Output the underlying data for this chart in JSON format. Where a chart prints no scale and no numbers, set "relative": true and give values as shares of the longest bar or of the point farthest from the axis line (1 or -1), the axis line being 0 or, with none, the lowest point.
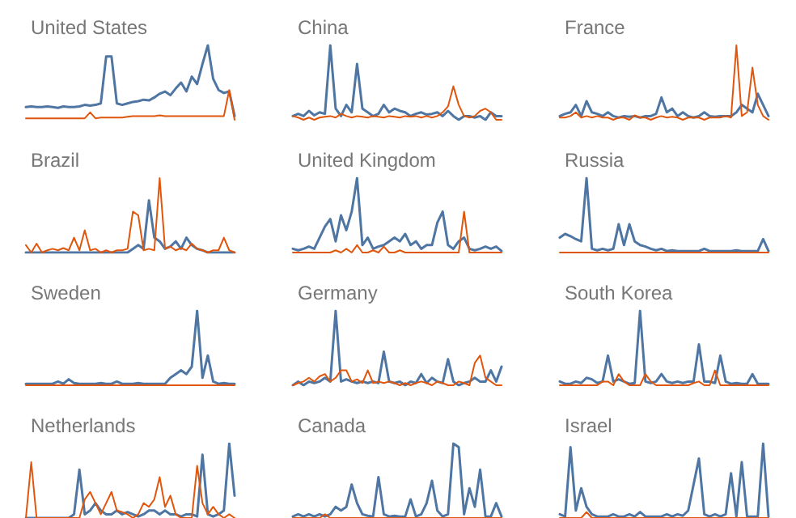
{
  "chart_data": [
    {
      "type": "line",
      "title": "United States",
      "relative": true,
      "categories": [
        null,
        null,
        null,
        null,
        null,
        null,
        null,
        null,
        null,
        null,
        null,
        null,
        null,
        null,
        null,
        null,
        null,
        null,
        null,
        null,
        null,
        null,
        null,
        null,
        null,
        null,
        null,
        null,
        null,
        null,
        null,
        null,
        null,
        null,
        null,
        null,
        null,
        null,
        null,
        null
      ],
      "series": [
        {
          "color": "#4f76a3",
          "values": [
            0.17,
            0.18,
            0.17,
            0.17,
            0.18,
            0.17,
            0.16,
            0.18,
            0.17,
            0.17,
            0.18,
            0.2,
            0.19,
            0.2,
            0.22,
            0.85,
            0.85,
            0.22,
            0.2,
            0.22,
            0.24,
            0.25,
            0.27,
            0.26,
            0.3,
            0.35,
            0.38,
            0.33,
            0.42,
            0.5,
            0.38,
            0.58,
            0.48,
            0.75,
            1,
            0.55,
            0.4,
            0.36,
            0.38,
            0.05
          ]
        },
        {
          "color": "#e0560c",
          "values": [
            0.02,
            0.02,
            0.02,
            0.02,
            0.02,
            0.02,
            0.02,
            0.02,
            0.02,
            0.02,
            0.02,
            0.02,
            0.1,
            0.02,
            0.03,
            0.03,
            0.03,
            0.03,
            0.03,
            0.04,
            0.05,
            0.05,
            0.05,
            0.05,
            0.05,
            0.06,
            0.05,
            0.05,
            0.05,
            0.05,
            0.05,
            0.05,
            0.05,
            0.05,
            0.05,
            0.05,
            0.05,
            0.05,
            0.4,
            0
          ]
        }
      ]
    },
    {
      "type": "line",
      "title": "China",
      "relative": true,
      "categories": [
        null,
        null,
        null,
        null,
        null,
        null,
        null,
        null,
        null,
        null,
        null,
        null,
        null,
        null,
        null,
        null,
        null,
        null,
        null,
        null,
        null,
        null,
        null,
        null,
        null,
        null,
        null,
        null,
        null,
        null,
        null,
        null,
        null,
        null,
        null,
        null,
        null,
        null,
        null,
        null
      ],
      "series": [
        {
          "color": "#4f76a3",
          "values": [
            0.05,
            0.08,
            0.05,
            0.12,
            0.06,
            0.1,
            0.08,
            1,
            0.15,
            0.05,
            0.2,
            0.1,
            0.75,
            0.15,
            0.1,
            0.05,
            0.08,
            0.2,
            0.1,
            0.15,
            0.12,
            0.1,
            0.05,
            0.08,
            0.1,
            0.07,
            0.08,
            0.1,
            0.05,
            0.12,
            0.05,
            0,
            0.05,
            0.05,
            0.03,
            0.05,
            0,
            0.1,
            0.05,
            0.05
          ]
        },
        {
          "color": "#e0560c",
          "values": [
            0.05,
            0.03,
            0,
            0.03,
            0,
            0.03,
            0.04,
            0.05,
            0.03,
            0.08,
            0.05,
            0.03,
            0.05,
            0.04,
            0.03,
            0.05,
            0.04,
            0.03,
            0.05,
            0.04,
            0.03,
            0.05,
            0.04,
            0.05,
            0.03,
            0.05,
            0.03,
            0.05,
            0.1,
            0.18,
            0.45,
            0.2,
            0.05,
            0.03,
            0.05,
            0.12,
            0.15,
            0.1,
            0,
            0
          ]
        }
      ]
    },
    {
      "type": "line",
      "title": "France",
      "relative": true,
      "categories": [
        null,
        null,
        null,
        null,
        null,
        null,
        null,
        null,
        null,
        null,
        null,
        null,
        null,
        null,
        null,
        null,
        null,
        null,
        null,
        null,
        null,
        null,
        null,
        null,
        null,
        null,
        null,
        null,
        null,
        null,
        null,
        null,
        null,
        null,
        null,
        null,
        null,
        null,
        null,
        null
      ],
      "series": [
        {
          "color": "#4f76a3",
          "values": [
            0.05,
            0.08,
            0.1,
            0.2,
            0.05,
            0.25,
            0.1,
            0.08,
            0.05,
            0.1,
            0.05,
            0.03,
            0.05,
            0.04,
            0.05,
            0.03,
            0.05,
            0.05,
            0.08,
            0.3,
            0.1,
            0.15,
            0.05,
            0.1,
            0.05,
            0.03,
            0.05,
            0.1,
            0.05,
            0.04,
            0.05,
            0.05,
            0.05,
            0.1,
            0.2,
            0.15,
            0.1,
            0.35,
            0.2,
            0.05
          ]
        },
        {
          "color": "#e0560c",
          "values": [
            0.03,
            0.03,
            0.05,
            0.1,
            0.03,
            0.05,
            0.03,
            0.05,
            0.03,
            0.03,
            0,
            0.03,
            0.03,
            0,
            0.06,
            0.03,
            0.03,
            0,
            0.03,
            0.05,
            0.03,
            0.04,
            0.03,
            0,
            0.03,
            0.03,
            0.03,
            0,
            0.03,
            0.03,
            0.03,
            0.05,
            0.03,
            1,
            0.05,
            0.1,
            0.7,
            0.2,
            0.05,
            0
          ]
        }
      ]
    },
    {
      "type": "line",
      "title": "Brazil",
      "relative": true,
      "categories": [
        null,
        null,
        null,
        null,
        null,
        null,
        null,
        null,
        null,
        null,
        null,
        null,
        null,
        null,
        null,
        null,
        null,
        null,
        null,
        null,
        null,
        null,
        null,
        null,
        null,
        null,
        null,
        null,
        null,
        null,
        null,
        null,
        null,
        null,
        null,
        null,
        null,
        null,
        null,
        null
      ],
      "series": [
        {
          "color": "#4f76a3",
          "values": [
            0,
            0,
            0,
            0,
            0,
            0,
            0,
            0,
            0,
            0,
            0,
            0,
            0,
            0,
            0,
            0,
            0,
            0,
            0,
            0,
            0.05,
            0.1,
            0.05,
            0.7,
            0.2,
            0.15,
            0.05,
            0.08,
            0.15,
            0.05,
            0.2,
            0.1,
            0.05,
            0.03,
            0,
            0,
            0,
            0,
            0,
            0
          ]
        },
        {
          "color": "#e0560c",
          "values": [
            0.1,
            0,
            0.12,
            0,
            0.03,
            0.05,
            0.03,
            0.06,
            0.03,
            0.2,
            0.03,
            0.3,
            0.03,
            0.05,
            0,
            0.03,
            0,
            0.03,
            0.03,
            0.05,
            0.55,
            0.5,
            0.03,
            0.05,
            0.03,
            1,
            0.05,
            0.08,
            0.03,
            0.06,
            0.03,
            0.12,
            0.05,
            0.03,
            0,
            0.03,
            0.03,
            0.2,
            0.03,
            0
          ]
        }
      ]
    },
    {
      "type": "line",
      "title": "United Kingdom",
      "relative": true,
      "categories": [
        null,
        null,
        null,
        null,
        null,
        null,
        null,
        null,
        null,
        null,
        null,
        null,
        null,
        null,
        null,
        null,
        null,
        null,
        null,
        null,
        null,
        null,
        null,
        null,
        null,
        null,
        null,
        null,
        null,
        null,
        null,
        null,
        null,
        null,
        null,
        null,
        null,
        null,
        null,
        null
      ],
      "series": [
        {
          "color": "#4f76a3",
          "values": [
            0.05,
            0.03,
            0.05,
            0.08,
            0.05,
            0.2,
            0.35,
            0.45,
            0.15,
            0.5,
            0.3,
            0.55,
            1,
            0.1,
            0.2,
            0.05,
            0.08,
            0.1,
            0.15,
            0.2,
            0.15,
            0.25,
            0.1,
            0.15,
            0.05,
            0.1,
            0.1,
            0.4,
            0.55,
            0.1,
            0.05,
            0.15,
            0.2,
            0.05,
            0.03,
            0.05,
            0.08,
            0.05,
            0.08,
            0.02
          ]
        },
        {
          "color": "#e0560c",
          "values": [
            0,
            0,
            0,
            0,
            0,
            0,
            0,
            0,
            0.03,
            0,
            0.05,
            0,
            0.1,
            0,
            0,
            0.03,
            0,
            0.08,
            0,
            0,
            0.03,
            0,
            0,
            0,
            0,
            0,
            0,
            0,
            0,
            0,
            0,
            0,
            0.55,
            0,
            0,
            0,
            0,
            0,
            0,
            0
          ]
        }
      ]
    },
    {
      "type": "line",
      "title": "Russia",
      "relative": true,
      "categories": [
        null,
        null,
        null,
        null,
        null,
        null,
        null,
        null,
        null,
        null,
        null,
        null,
        null,
        null,
        null,
        null,
        null,
        null,
        null,
        null,
        null,
        null,
        null,
        null,
        null,
        null,
        null,
        null,
        null,
        null,
        null,
        null,
        null,
        null,
        null,
        null,
        null,
        null,
        null,
        null
      ],
      "series": [
        {
          "color": "#4f76a3",
          "values": [
            0.2,
            0.25,
            0.22,
            0.18,
            0.15,
            1,
            0.05,
            0.03,
            0.05,
            0.03,
            0.05,
            0.38,
            0.1,
            0.38,
            0.15,
            0.1,
            0.08,
            0.05,
            0.03,
            0.05,
            0.02,
            0.03,
            0.02,
            0.02,
            0.02,
            0.02,
            0.02,
            0.05,
            0.02,
            0.02,
            0.02,
            0.02,
            0.02,
            0.03,
            0.02,
            0.02,
            0.02,
            0.02,
            0.18,
            0.02
          ]
        },
        {
          "color": "#e0560c",
          "values": [
            0,
            0,
            0,
            0,
            0,
            0,
            0,
            0,
            0,
            0,
            0,
            0,
            0,
            0,
            0,
            0,
            0,
            0,
            0,
            0,
            0,
            0,
            0,
            0,
            0,
            0,
            0,
            0,
            0,
            0,
            0,
            0,
            0,
            0,
            0,
            0,
            0,
            0,
            0,
            0
          ]
        }
      ]
    },
    {
      "type": "line",
      "title": "Sweden",
      "relative": true,
      "categories": [
        null,
        null,
        null,
        null,
        null,
        null,
        null,
        null,
        null,
        null,
        null,
        null,
        null,
        null,
        null,
        null,
        null,
        null,
        null,
        null,
        null,
        null,
        null,
        null,
        null,
        null,
        null,
        null,
        null,
        null,
        null,
        null,
        null,
        null,
        null,
        null,
        null,
        null,
        null,
        null
      ],
      "series": [
        {
          "color": "#4f76a3",
          "values": [
            0.02,
            0.02,
            0.02,
            0.02,
            0.02,
            0.02,
            0.05,
            0.02,
            0.08,
            0.03,
            0.02,
            0.02,
            0.02,
            0.02,
            0.03,
            0.02,
            0.02,
            0.05,
            0.02,
            0.02,
            0.02,
            0.03,
            0.02,
            0.02,
            0.02,
            0.02,
            0.02,
            0.1,
            0.15,
            0.2,
            0.15,
            0.25,
            1,
            0.1,
            0.4,
            0.05,
            0.02,
            0.03,
            0.02,
            0.02
          ]
        },
        {
          "color": "#e0560c",
          "values": [
            0,
            0,
            0,
            0,
            0,
            0,
            0,
            0,
            0,
            0,
            0,
            0,
            0,
            0,
            0,
            0,
            0,
            0,
            0,
            0,
            0,
            0,
            0,
            0,
            0,
            0,
            0,
            0,
            0,
            0,
            0,
            0,
            0,
            0,
            0,
            0,
            0,
            0,
            0,
            0
          ]
        }
      ]
    },
    {
      "type": "line",
      "title": "Germany",
      "relative": true,
      "categories": [
        null,
        null,
        null,
        null,
        null,
        null,
        null,
        null,
        null,
        null,
        null,
        null,
        null,
        null,
        null,
        null,
        null,
        null,
        null,
        null,
        null,
        null,
        null,
        null,
        null,
        null,
        null,
        null,
        null,
        null,
        null,
        null,
        null,
        null,
        null,
        null,
        null,
        null,
        null,
        null
      ],
      "series": [
        {
          "color": "#4f76a3",
          "values": [
            0,
            0.05,
            0,
            0.05,
            0.03,
            0.05,
            0.1,
            0.05,
            1,
            0.05,
            0.08,
            0.05,
            0.03,
            0.05,
            0.03,
            0.05,
            0.03,
            0.45,
            0.05,
            0.03,
            0.05,
            0,
            0.05,
            0.03,
            0.15,
            0.03,
            0.1,
            0.05,
            0.03,
            0.35,
            0.05,
            0,
            0.03,
            0.05,
            0.1,
            0.05,
            0.05,
            0.2,
            0.05,
            0.25
          ]
        },
        {
          "color": "#e0560c",
          "values": [
            0,
            0.03,
            0.05,
            0.1,
            0.05,
            0.12,
            0.15,
            0.05,
            0.1,
            0.2,
            0.2,
            0.05,
            0.08,
            0.03,
            0.2,
            0.03,
            0.05,
            0.03,
            0.05,
            0.03,
            0,
            0.03,
            0,
            0.03,
            0.05,
            0.03,
            0,
            0.05,
            0.03,
            0,
            0,
            0.05,
            0.03,
            0,
            0.3,
            0.4,
            0.1,
            0.05,
            0,
            0
          ]
        }
      ]
    },
    {
      "type": "line",
      "title": "South Korea",
      "relative": true,
      "categories": [
        null,
        null,
        null,
        null,
        null,
        null,
        null,
        null,
        null,
        null,
        null,
        null,
        null,
        null,
        null,
        null,
        null,
        null,
        null,
        null,
        null,
        null,
        null,
        null,
        null,
        null,
        null,
        null,
        null,
        null,
        null,
        null,
        null,
        null,
        null,
        null,
        null,
        null,
        null,
        null
      ],
      "series": [
        {
          "color": "#4f76a3",
          "values": [
            0.05,
            0.02,
            0.02,
            0.05,
            0.03,
            0.1,
            0.08,
            0.03,
            0.05,
            0.4,
            0.05,
            0.08,
            0.05,
            0.02,
            0.03,
            1,
            0.05,
            0.03,
            0.05,
            0.15,
            0.05,
            0.03,
            0.05,
            0.03,
            0.05,
            0.05,
            0.55,
            0.05,
            0.05,
            0.03,
            0.4,
            0.05,
            0.02,
            0.03,
            0.02,
            0.02,
            0.15,
            0.02,
            0.02,
            0.02
          ]
        },
        {
          "color": "#e0560c",
          "values": [
            0,
            0,
            0,
            0,
            0,
            0,
            0,
            0,
            0.05,
            0.05,
            0,
            0.15,
            0.05,
            0,
            0,
            0,
            0.15,
            0.05,
            0,
            0,
            0,
            0,
            0,
            0,
            0,
            0.03,
            0.05,
            0,
            0,
            0.2,
            0,
            0,
            0,
            0,
            0,
            0,
            0,
            0,
            0,
            0
          ]
        }
      ]
    },
    {
      "type": "line",
      "title": "Netherlands",
      "relative": true,
      "categories": [
        null,
        null,
        null,
        null,
        null,
        null,
        null,
        null,
        null,
        null,
        null,
        null,
        null,
        null,
        null,
        null,
        null,
        null,
        null,
        null,
        null,
        null,
        null,
        null,
        null,
        null,
        null,
        null,
        null,
        null,
        null,
        null,
        null,
        null,
        null,
        null,
        null,
        null,
        null,
        null
      ],
      "series": [
        {
          "color": "#4f76a3",
          "values": [
            0,
            0,
            0,
            0,
            0,
            0,
            0,
            0,
            0,
            0.05,
            0.65,
            0.05,
            0.1,
            0.2,
            0.1,
            0.05,
            0.05,
            0.1,
            0.05,
            0.08,
            0.05,
            0.02,
            0.05,
            0.1,
            0.1,
            0.05,
            0.1,
            0.05,
            0.05,
            0.02,
            0.05,
            0.05,
            0.02,
            0.85,
            0.05,
            0.02,
            0.05,
            0.1,
            1,
            0.3
          ]
        },
        {
          "color": "#e0560c",
          "values": [
            0,
            0.75,
            0,
            0,
            0,
            0,
            0,
            0,
            0,
            0,
            0,
            0.25,
            0.35,
            0.2,
            0.05,
            0.2,
            0.35,
            0.1,
            0.08,
            0.05,
            0,
            0.05,
            0.2,
            0.15,
            0.25,
            0.55,
            0.15,
            0.3,
            0.05,
            0,
            0,
            0,
            0.7,
            0.2,
            0.05,
            0.15,
            0.05,
            0,
            0.05,
            0
          ]
        }
      ]
    },
    {
      "type": "line",
      "title": "Canada",
      "relative": true,
      "categories": [
        null,
        null,
        null,
        null,
        null,
        null,
        null,
        null,
        null,
        null,
        null,
        null,
        null,
        null,
        null,
        null,
        null,
        null,
        null,
        null,
        null,
        null,
        null,
        null,
        null,
        null,
        null,
        null,
        null,
        null,
        null,
        null,
        null,
        null,
        null,
        null,
        null,
        null,
        null,
        null
      ],
      "series": [
        {
          "color": "#4f76a3",
          "values": [
            0.02,
            0.05,
            0.02,
            0.05,
            0.02,
            0.05,
            0.02,
            0.05,
            0.15,
            0.1,
            0.15,
            0.45,
            0.2,
            0.05,
            0.03,
            0.02,
            0.55,
            0.05,
            0.02,
            0.03,
            0.02,
            0.02,
            0.25,
            0.02,
            0.05,
            0.2,
            0.5,
            0.1,
            0.02,
            0.05,
            1,
            0.95,
            0.05,
            0.4,
            0.15,
            0.65,
            0.02,
            0.02,
            0.2,
            0.02
          ]
        },
        {
          "color": "#e0560c",
          "values": [
            0,
            0,
            0,
            0,
            0,
            0,
            0.05,
            0,
            0,
            0,
            0,
            0,
            0,
            0,
            0,
            0,
            0,
            0,
            0,
            0,
            0,
            0,
            0,
            0,
            0,
            0,
            0,
            0,
            0,
            0,
            0,
            0,
            0,
            0,
            0,
            0,
            0,
            0,
            0,
            0
          ]
        }
      ]
    },
    {
      "type": "line",
      "title": "Israel",
      "relative": true,
      "categories": [
        null,
        null,
        null,
        null,
        null,
        null,
        null,
        null,
        null,
        null,
        null,
        null,
        null,
        null,
        null,
        null,
        null,
        null,
        null,
        null,
        null,
        null,
        null,
        null,
        null,
        null,
        null,
        null,
        null,
        null,
        null,
        null,
        null,
        null,
        null,
        null,
        null,
        null,
        null,
        null
      ],
      "series": [
        {
          "color": "#4f76a3",
          "values": [
            0.05,
            0.02,
            0.95,
            0.1,
            0.4,
            0.15,
            0.05,
            0.02,
            0.02,
            0.02,
            0.05,
            0.02,
            0.02,
            0.05,
            0.02,
            0.08,
            0.02,
            0.02,
            0.02,
            0.02,
            0.05,
            0.02,
            0.05,
            0.03,
            0.1,
            0.45,
            0.8,
            0.05,
            0.02,
            0.05,
            0.02,
            0.05,
            0.6,
            0.02,
            0.75,
            0.02,
            0.02,
            0.02,
            1,
            0.02
          ]
        },
        {
          "color": "#e0560c",
          "values": [
            0,
            0,
            0,
            0,
            0,
            0.08,
            0,
            0,
            0,
            0,
            0,
            0,
            0,
            0,
            0,
            0,
            0,
            0,
            0,
            0,
            0,
            0,
            0,
            0,
            0,
            0,
            0,
            0,
            0,
            0,
            0,
            0,
            0,
            0,
            0,
            0,
            0,
            0,
            0,
            0
          ]
        }
      ]
    }
  ]
}
